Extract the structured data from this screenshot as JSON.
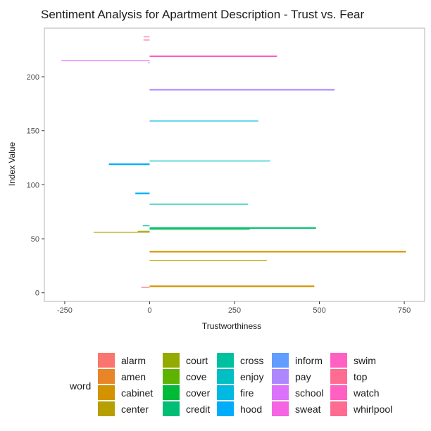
{
  "chart_data": {
    "type": "bar",
    "orientation": "horizontal-segments",
    "title": "Sentiment Analysis for Apartment Description - Trust vs. Fear",
    "xlabel": "Trustworthiness",
    "ylabel": "Index Value",
    "xlim": [
      -310,
      810
    ],
    "ylim": [
      -8,
      245
    ],
    "xticks": [
      -250,
      0,
      250,
      500,
      750
    ],
    "yticks": [
      0,
      50,
      100,
      150,
      200
    ],
    "xtick_labels": [
      "-250",
      "0",
      "250",
      "500",
      "750"
    ],
    "ytick_labels": [
      "0",
      "50",
      "100",
      "150",
      "200"
    ],
    "grid": false,
    "legend": {
      "title": "word",
      "position": "bottom",
      "columns": 5
    },
    "legend_entries": [
      {
        "label": "alarm",
        "color": "#F8766D"
      },
      {
        "label": "amen",
        "color": "#E88526"
      },
      {
        "label": "cabinet",
        "color": "#D39200"
      },
      {
        "label": "center",
        "color": "#B79F00"
      },
      {
        "label": "court",
        "color": "#93AA00"
      },
      {
        "label": "cove",
        "color": "#5EB300"
      },
      {
        "label": "cover",
        "color": "#00BA38"
      },
      {
        "label": "credit",
        "color": "#00BF74"
      },
      {
        "label": "cross",
        "color": "#00C19F"
      },
      {
        "label": "enjoy",
        "color": "#00BFC4"
      },
      {
        "label": "fire",
        "color": "#00B9E3"
      },
      {
        "label": "hood",
        "color": "#00ADFA"
      },
      {
        "label": "inform",
        "color": "#619CFF"
      },
      {
        "label": "pay",
        "color": "#AE87FF"
      },
      {
        "label": "school",
        "color": "#DB72FB"
      },
      {
        "label": "sweat",
        "color": "#F564E3"
      },
      {
        "label": "swim",
        "color": "#FF61C3"
      },
      {
        "label": "top",
        "color": "#FF6C91"
      },
      {
        "label": "watch",
        "color": "#FF61C3"
      },
      {
        "label": "whirlpool",
        "color": "#FF6C91"
      }
    ],
    "segments": [
      {
        "word": "alarm",
        "index": 5,
        "x0": -25,
        "x1": 0,
        "color": "#F8766D"
      },
      {
        "word": "cabinet",
        "index": 6,
        "x0": 0,
        "x1": 485,
        "color": "#D39200"
      },
      {
        "word": "center",
        "index": 30,
        "x0": 0,
        "x1": 345,
        "color": "#B79F00"
      },
      {
        "word": "cabinet",
        "index": 38,
        "x0": 0,
        "x1": 755,
        "color": "#D39200"
      },
      {
        "word": "center",
        "index": 56,
        "x0": -165,
        "x1": 0,
        "color": "#B79F00"
      },
      {
        "word": "court",
        "index": 57,
        "x0": -35,
        "x1": 0,
        "color": "#93AA00"
      },
      {
        "word": "cover",
        "index": 59,
        "x0": 0,
        "x1": 295,
        "color": "#00BA38"
      },
      {
        "word": "credit",
        "index": 60,
        "x0": 0,
        "x1": 490,
        "color": "#00BF74"
      },
      {
        "word": "cross",
        "index": 62,
        "x0": -20,
        "x1": 0,
        "color": "#00C19F"
      },
      {
        "word": "cross",
        "index": 82,
        "x0": 0,
        "x1": 290,
        "color": "#00C19F"
      },
      {
        "word": "hood",
        "index": 92,
        "x0": -42,
        "x1": 0,
        "color": "#00ADFA"
      },
      {
        "word": "hood",
        "index": 119,
        "x0": -120,
        "x1": 0,
        "color": "#00ADFA"
      },
      {
        "word": "enjoy",
        "index": 122,
        "x0": 0,
        "x1": 355,
        "color": "#00BFC4"
      },
      {
        "word": "fire",
        "index": 159,
        "x0": 0,
        "x1": 320,
        "color": "#00B9E3"
      },
      {
        "word": "pay",
        "index": 188,
        "x0": 0,
        "x1": 545,
        "color": "#AE87FF"
      },
      {
        "word": "school",
        "index": 213,
        "x0": -5,
        "x1": 0,
        "color": "#DB72FB"
      },
      {
        "word": "school",
        "index": 215,
        "x0": -260,
        "x1": 0,
        "color": "#DB72FB"
      },
      {
        "word": "swim",
        "index": 219,
        "x0": 0,
        "x1": 375,
        "color": "#FF61C3"
      },
      {
        "word": "whirlpool",
        "index": 234,
        "x0": -18,
        "x1": 0,
        "color": "#FF6C91"
      },
      {
        "word": "whirlpool",
        "index": 237,
        "x0": -18,
        "x1": 0,
        "color": "#FF6C91"
      }
    ]
  }
}
